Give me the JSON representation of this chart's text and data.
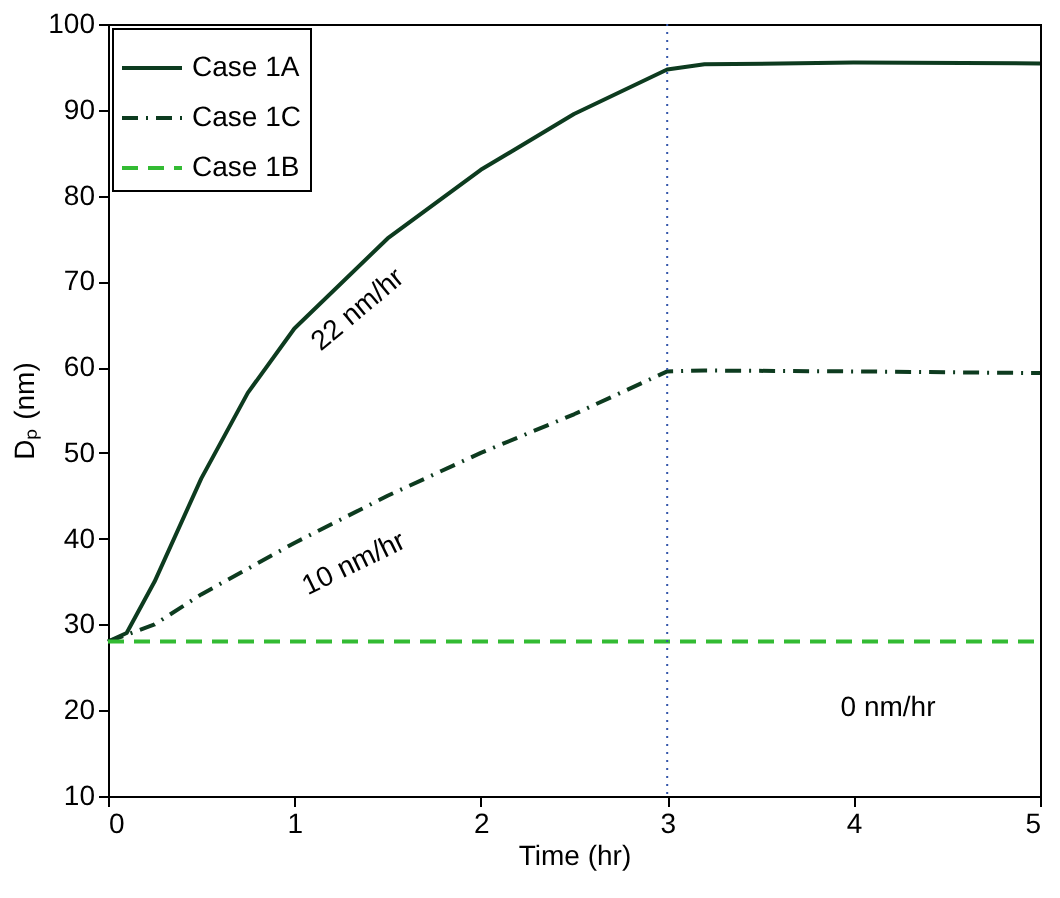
{
  "chart_data": {
    "type": "line",
    "xlabel": "Time (hr)",
    "ylabel": "Dₚ (nm)",
    "xlim": [
      0,
      5
    ],
    "ylim": [
      10,
      100
    ],
    "xticks": [
      0,
      1,
      2,
      3,
      4,
      5
    ],
    "yticks": [
      10,
      20,
      30,
      40,
      50,
      60,
      70,
      80,
      90,
      100
    ],
    "grid": false,
    "legend": "top left",
    "marker": "none",
    "series": [
      {
        "name": "Case 1A",
        "color": "#0d3b1f",
        "line_style": "solid",
        "x": [
          0,
          0.1,
          0.25,
          0.5,
          0.75,
          1,
          1.5,
          2,
          2.5,
          3,
          3.2,
          4,
          5
        ],
        "values": [
          28,
          29,
          35,
          47,
          57,
          64.5,
          75,
          83,
          89.5,
          94.7,
          95.3,
          95.5,
          95.4
        ]
      },
      {
        "name": "Case 1C",
        "color": "#0d3b1f",
        "line_style": "dashdot",
        "x": [
          0,
          0.25,
          0.5,
          1,
          1.5,
          2,
          2.5,
          3,
          3.2,
          4,
          5
        ],
        "values": [
          28,
          30,
          33.5,
          39.5,
          45,
          50,
          54.5,
          59.5,
          59.6,
          59.5,
          59.3
        ]
      },
      {
        "name": "Case 1B",
        "color": "#33bb33",
        "line_style": "dashed",
        "x": [
          0,
          5
        ],
        "values": [
          28,
          28
        ]
      }
    ],
    "ref_lines": [
      {
        "axis": "x",
        "value": 3,
        "color": "#3355aa",
        "line_style": "dotted"
      }
    ],
    "annotations": [
      "22 nm/hr",
      "10 nm/hr",
      "0 nm/hr"
    ]
  }
}
